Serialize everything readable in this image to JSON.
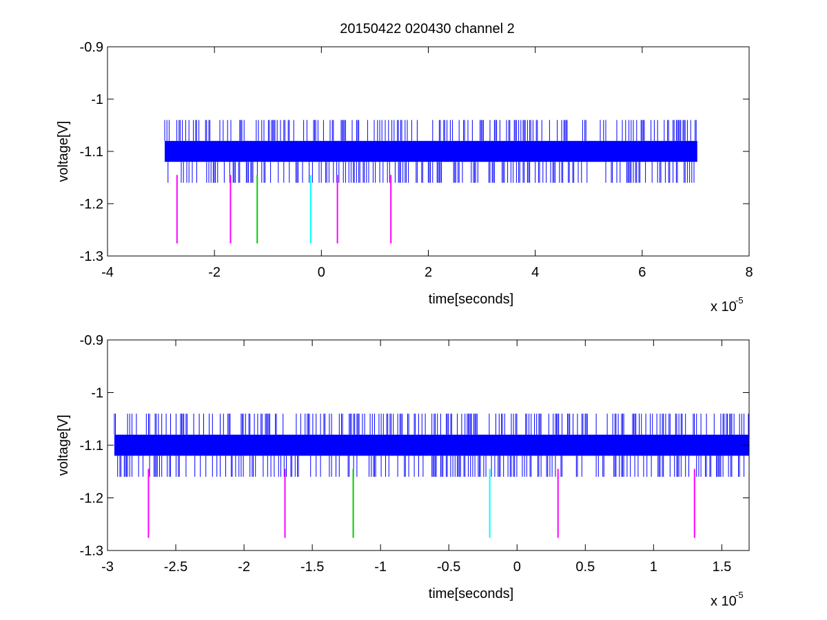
{
  "figure": {
    "title": "20150422 020430 channel 2"
  },
  "chart_data": [
    {
      "type": "line",
      "title": "20150422 020430 channel 2",
      "xlabel": "time[seconds]",
      "ylabel": "voltage[V]",
      "x_exponent_label": "x 10",
      "x_exponent_power": "-5",
      "xlim": [
        -4e-05,
        8e-05
      ],
      "ylim": [
        -1.3,
        -0.9
      ],
      "xticks": [
        -4,
        -2,
        0,
        2,
        4,
        6,
        8
      ],
      "xtick_labels": [
        "-4",
        "-2",
        "0",
        "2",
        "4",
        "6",
        "8"
      ],
      "yticks": [
        -0.9,
        -1,
        -1.1,
        -1.2,
        -1.3
      ],
      "ytick_labels": [
        "-0.9",
        "-1",
        "-1.1",
        "-1.2",
        "-1.3"
      ],
      "signal": {
        "color": "#0000ff",
        "x_range": [
          -2.93e-05,
          7.03e-05
        ],
        "band": [
          -1.12,
          -1.08
        ],
        "spike_levels": [
          -1.04,
          -1.16
        ],
        "gap_x_range": [
          5e-05,
          5.2e-05
        ]
      },
      "markers": [
        {
          "x": -2.7e-05,
          "color": "#ff00ff",
          "y_range": [
            -1.276,
            -1.145
          ]
        },
        {
          "x": -1.7e-05,
          "color": "#ff00ff",
          "y_range": [
            -1.276,
            -1.145
          ]
        },
        {
          "x": -1.2e-05,
          "color": "#00cc00",
          "y_range": [
            -1.276,
            -1.145
          ]
        },
        {
          "x": -2e-06,
          "color": "#00ffff",
          "y_range": [
            -1.276,
            -1.145
          ]
        },
        {
          "x": 3e-06,
          "color": "#ff00ff",
          "y_range": [
            -1.276,
            -1.145
          ]
        },
        {
          "x": 1.3e-05,
          "color": "#ff00ff",
          "y_range": [
            -1.276,
            -1.145
          ]
        }
      ]
    },
    {
      "type": "line",
      "title": "",
      "xlabel": "time[seconds]",
      "ylabel": "voltage[V]",
      "x_exponent_label": "x 10",
      "x_exponent_power": "-5",
      "xlim": [
        -3e-05,
        1.7e-05
      ],
      "ylim": [
        -1.3,
        -0.9
      ],
      "xticks": [
        -3,
        -2.5,
        -2,
        -1.5,
        -1,
        -0.5,
        0,
        0.5,
        1,
        1.5
      ],
      "xtick_labels": [
        "-3",
        "-2.5",
        "-2",
        "-1.5",
        "-1",
        "-0.5",
        "0",
        "0.5",
        "1",
        "1.5"
      ],
      "yticks": [
        -0.9,
        -1,
        -1.1,
        -1.2,
        -1.3
      ],
      "ytick_labels": [
        "-0.9",
        "-1",
        "-1.1",
        "-1.2",
        "-1.3"
      ],
      "signal": {
        "color": "#0000ff",
        "x_range": [
          -2.95e-05,
          1.7e-05
        ],
        "band": [
          -1.12,
          -1.08
        ],
        "spike_levels": [
          -1.04,
          -1.16
        ],
        "gap_x_range": null
      },
      "markers": [
        {
          "x": -2.7e-05,
          "color": "#ff00ff",
          "y_range": [
            -1.276,
            -1.145
          ]
        },
        {
          "x": -1.7e-05,
          "color": "#ff00ff",
          "y_range": [
            -1.276,
            -1.145
          ]
        },
        {
          "x": -1.2e-05,
          "color": "#00cc00",
          "y_range": [
            -1.276,
            -1.145
          ]
        },
        {
          "x": -2e-06,
          "color": "#00ffff",
          "y_range": [
            -1.276,
            -1.145
          ]
        },
        {
          "x": 3e-06,
          "color": "#ff00ff",
          "y_range": [
            -1.276,
            -1.145
          ]
        },
        {
          "x": 1.3e-05,
          "color": "#ff00ff",
          "y_range": [
            -1.276,
            -1.145
          ]
        }
      ]
    }
  ]
}
